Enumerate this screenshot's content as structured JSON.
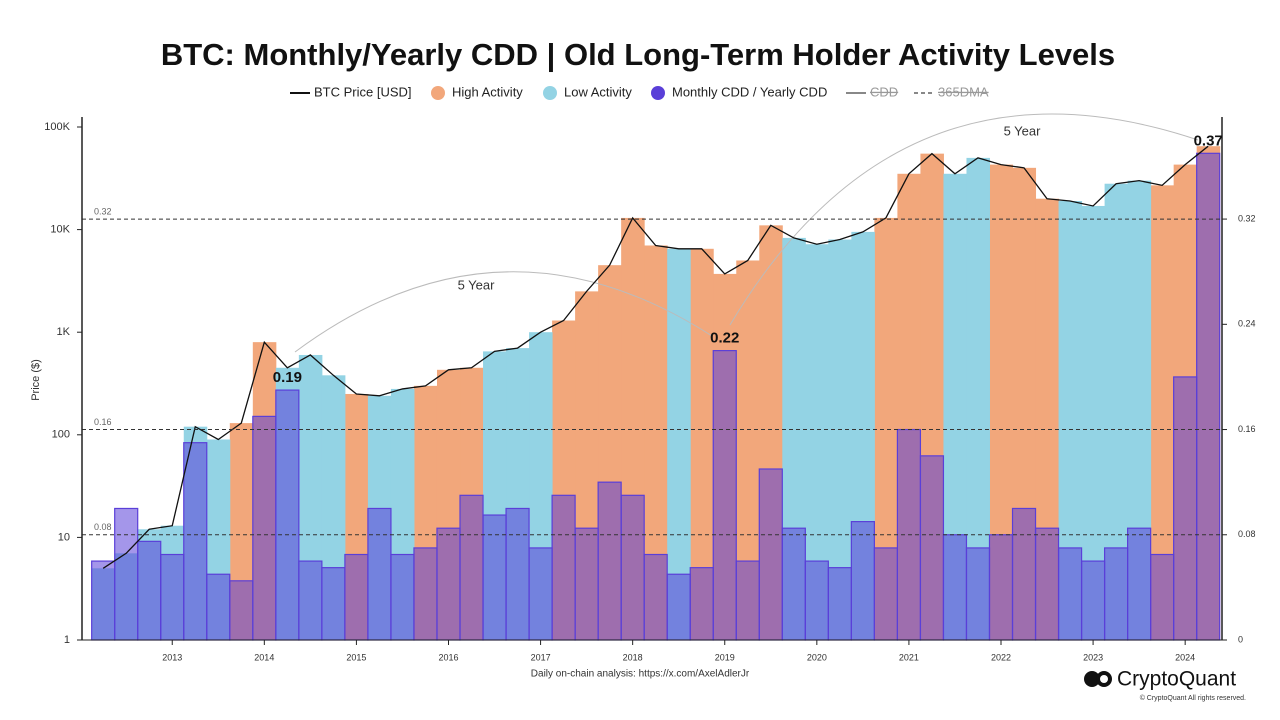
{
  "chart_data": {
    "type": "line",
    "title": "BTC: Monthly/Yearly CDD | Old Long-Term Holder Activity Levels",
    "ylabel": "Price ($)",
    "x": [
      2012.25,
      2012.5,
      2012.75,
      2013,
      2013.25,
      2013.5,
      2013.75,
      2014,
      2014.25,
      2014.5,
      2014.75,
      2015,
      2015.25,
      2015.5,
      2015.75,
      2016,
      2016.25,
      2016.5,
      2016.75,
      2017,
      2017.25,
      2017.5,
      2017.75,
      2018,
      2018.25,
      2018.5,
      2018.75,
      2019,
      2019.25,
      2019.5,
      2019.75,
      2020,
      2020.25,
      2020.5,
      2020.75,
      2021,
      2021.25,
      2021.5,
      2021.75,
      2022,
      2022.25,
      2022.5,
      2022.75,
      2023,
      2023.25,
      2023.5,
      2023.75,
      2024,
      2024.25
    ],
    "xlim": [
      2012.02,
      2024.4
    ],
    "xticks": [
      2013,
      2014,
      2015,
      2016,
      2017,
      2018,
      2019,
      2020,
      2021,
      2022,
      2023,
      2024
    ],
    "ylim": [
      1,
      100000
    ],
    "log_y": true,
    "yticks": [
      1,
      10,
      100,
      {
        "value": 1000,
        "label": "1K"
      },
      {
        "value": 10000,
        "label": "10K"
      },
      {
        "value": 100000,
        "label": "100K"
      }
    ],
    "y2lim": [
      0,
      0.39
    ],
    "y2ticks": [
      0,
      0.08,
      0.16,
      0.24,
      0.32
    ],
    "reference_lines": [
      0.32,
      0.16,
      0.08
    ],
    "series": [
      {
        "name": "BTC Price [USD]",
        "color": "#111111",
        "values": [
          5,
          7,
          12,
          13,
          120,
          90,
          130,
          800,
          450,
          600,
          380,
          250,
          240,
          280,
          300,
          430,
          450,
          650,
          700,
          1000,
          1300,
          2500,
          4500,
          13000,
          7000,
          6500,
          6500,
          3700,
          5000,
          11000,
          8300,
          7200,
          8000,
          9500,
          13000,
          35000,
          55000,
          35000,
          50000,
          43000,
          40000,
          20000,
          19000,
          17000,
          28000,
          30000,
          27000,
          43000,
          65000
        ]
      },
      {
        "name": "High Activity",
        "color": "#f2a77b",
        "values": [
          null,
          null,
          null,
          null,
          null,
          null,
          130,
          800,
          null,
          null,
          null,
          250,
          null,
          null,
          300,
          430,
          450,
          null,
          null,
          null,
          1300,
          2500,
          4500,
          13000,
          7000,
          null,
          6500,
          3700,
          5000,
          11000,
          null,
          null,
          null,
          null,
          13000,
          35000,
          55000,
          null,
          null,
          43000,
          40000,
          20000,
          null,
          null,
          null,
          null,
          27000,
          43000,
          65000
        ]
      },
      {
        "name": "Low Activity",
        "color": "#93d3e4",
        "values": [
          5,
          7,
          12,
          13,
          120,
          90,
          null,
          null,
          450,
          600,
          380,
          null,
          240,
          280,
          null,
          null,
          null,
          650,
          700,
          1000,
          null,
          null,
          null,
          null,
          null,
          6500,
          null,
          null,
          null,
          null,
          8300,
          7200,
          8000,
          9500,
          null,
          null,
          null,
          35000,
          50000,
          null,
          null,
          null,
          19000,
          17000,
          28000,
          30000,
          null,
          null,
          null
        ]
      },
      {
        "name": "Monthly CDD / Yearly CDD",
        "color": "#5a3fd8",
        "axis": "y2",
        "values": [
          0.06,
          0.1,
          0.075,
          0.065,
          0.15,
          0.05,
          0.045,
          0.17,
          0.19,
          0.06,
          0.055,
          0.065,
          0.1,
          0.065,
          0.07,
          0.085,
          0.11,
          0.095,
          0.1,
          0.07,
          0.11,
          0.085,
          0.12,
          0.11,
          0.065,
          0.05,
          0.055,
          0.22,
          0.06,
          0.13,
          0.085,
          0.06,
          0.055,
          0.09,
          0.07,
          0.16,
          0.14,
          0.08,
          0.07,
          0.08,
          0.1,
          0.085,
          0.07,
          0.06,
          0.07,
          0.085,
          0.065,
          0.2,
          0.37
        ]
      }
    ],
    "hidden_legend": [
      "CDD",
      "365DMA"
    ],
    "annotations": [
      "5 Year",
      "5 Year"
    ],
    "peak_labels": [
      {
        "x": 2014.25,
        "value": 0.19
      },
      {
        "x": 2019,
        "value": 0.22
      },
      {
        "x": 2024.25,
        "value": 0.37
      }
    ],
    "footer": "Daily on-chain analysis: https://x.com/AxelAdlerJr",
    "brand": "CryptoQuant",
    "copyright": "© CryptoQuant All rights reserved."
  }
}
